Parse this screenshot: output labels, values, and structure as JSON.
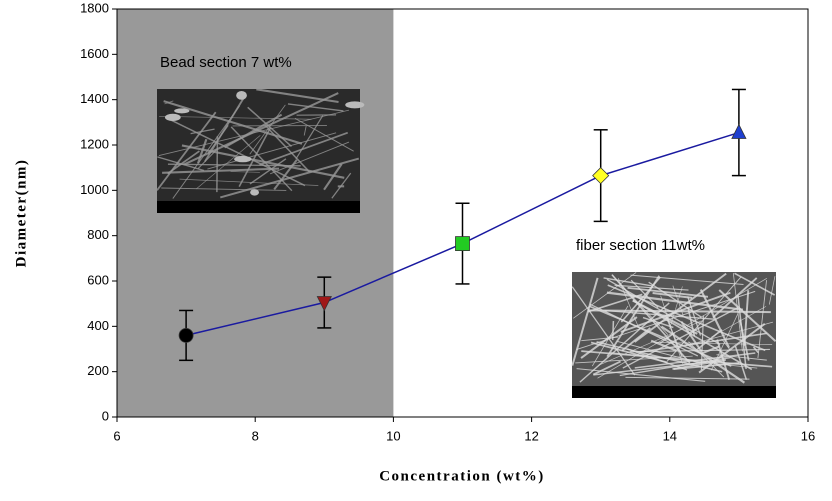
{
  "chart_data": {
    "type": "line",
    "x_label": "Concentration (wt%)",
    "y_label": "Diameter(nm)",
    "x": [
      7,
      9,
      11,
      13,
      15
    ],
    "values": [
      360,
      505,
      765,
      1065,
      1255
    ],
    "errors": [
      110,
      112,
      178,
      202,
      190
    ],
    "markers": [
      "circle",
      "triangle-down",
      "square",
      "diamond",
      "triangle-up"
    ],
    "marker_colors": [
      "#000000",
      "#a01818",
      "#22cc22",
      "#ffff22",
      "#1f3fd0"
    ],
    "line_color": "#1a1aa0",
    "xlim": [
      6,
      16
    ],
    "xticks": [
      6,
      8,
      10,
      12,
      14,
      16
    ],
    "ylim": [
      0,
      1800
    ],
    "yticks": [
      0,
      200,
      400,
      600,
      800,
      1000,
      1200,
      1400,
      1600,
      1800
    ],
    "shaded_region": {
      "xlim": [
        6,
        10
      ],
      "color": "#999999"
    },
    "annotations": [
      "Bead section 7 wt%",
      "fiber section  11wt%"
    ]
  }
}
